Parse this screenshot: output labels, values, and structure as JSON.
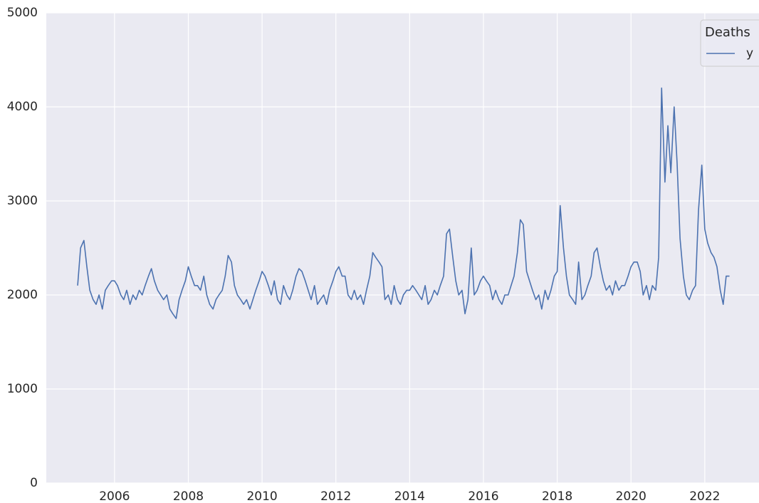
{
  "chart_data": {
    "type": "line",
    "legend_title": "Deaths",
    "legend_loc": "upper right",
    "grid": true,
    "xlim": [
      2004.15,
      2023.47
    ],
    "xticks": [
      2006,
      2008,
      2010,
      2012,
      2014,
      2016,
      2018,
      2020,
      2022
    ],
    "ylim": [
      0,
      5000
    ],
    "yticks": [
      0,
      1000,
      2000,
      3000,
      4000,
      5000
    ],
    "x": [
      2005.0,
      2005.08,
      2005.17,
      2005.25,
      2005.33,
      2005.42,
      2005.5,
      2005.58,
      2005.67,
      2005.75,
      2005.83,
      2005.92,
      2006.0,
      2006.08,
      2006.17,
      2006.25,
      2006.33,
      2006.42,
      2006.5,
      2006.58,
      2006.67,
      2006.75,
      2006.83,
      2006.92,
      2007.0,
      2007.08,
      2007.17,
      2007.25,
      2007.33,
      2007.42,
      2007.5,
      2007.58,
      2007.67,
      2007.75,
      2007.83,
      2007.92,
      2008.0,
      2008.08,
      2008.17,
      2008.25,
      2008.33,
      2008.42,
      2008.5,
      2008.58,
      2008.67,
      2008.75,
      2008.83,
      2008.92,
      2009.0,
      2009.08,
      2009.17,
      2009.25,
      2009.33,
      2009.42,
      2009.5,
      2009.58,
      2009.67,
      2009.75,
      2009.83,
      2009.92,
      2010.0,
      2010.08,
      2010.17,
      2010.25,
      2010.33,
      2010.42,
      2010.5,
      2010.58,
      2010.67,
      2010.75,
      2010.83,
      2010.92,
      2011.0,
      2011.08,
      2011.17,
      2011.25,
      2011.33,
      2011.42,
      2011.5,
      2011.58,
      2011.67,
      2011.75,
      2011.83,
      2011.92,
      2012.0,
      2012.08,
      2012.17,
      2012.25,
      2012.33,
      2012.42,
      2012.5,
      2012.58,
      2012.67,
      2012.75,
      2012.83,
      2012.92,
      2013.0,
      2013.08,
      2013.17,
      2013.25,
      2013.33,
      2013.42,
      2013.5,
      2013.58,
      2013.67,
      2013.75,
      2013.83,
      2013.92,
      2014.0,
      2014.08,
      2014.17,
      2014.25,
      2014.33,
      2014.42,
      2014.5,
      2014.58,
      2014.67,
      2014.75,
      2014.83,
      2014.92,
      2015.0,
      2015.08,
      2015.17,
      2015.25,
      2015.33,
      2015.42,
      2015.5,
      2015.58,
      2015.67,
      2015.75,
      2015.83,
      2015.92,
      2016.0,
      2016.08,
      2016.17,
      2016.25,
      2016.33,
      2016.42,
      2016.5,
      2016.58,
      2016.67,
      2016.75,
      2016.83,
      2016.92,
      2017.0,
      2017.08,
      2017.17,
      2017.25,
      2017.33,
      2017.42,
      2017.5,
      2017.58,
      2017.67,
      2017.75,
      2017.83,
      2017.92,
      2018.0,
      2018.08,
      2018.17,
      2018.25,
      2018.33,
      2018.42,
      2018.5,
      2018.58,
      2018.67,
      2018.75,
      2018.83,
      2018.92,
      2019.0,
      2019.08,
      2019.17,
      2019.25,
      2019.33,
      2019.42,
      2019.5,
      2019.58,
      2019.67,
      2019.75,
      2019.83,
      2019.92,
      2020.0,
      2020.08,
      2020.17,
      2020.25,
      2020.33,
      2020.42,
      2020.5,
      2020.58,
      2020.67,
      2020.75,
      2020.83,
      2020.92,
      2021.0,
      2021.08,
      2021.17,
      2021.25,
      2021.33,
      2021.42,
      2021.5,
      2021.58,
      2021.67,
      2021.75,
      2021.83,
      2021.92,
      2022.0,
      2022.08,
      2022.17,
      2022.25,
      2022.33,
      2022.42,
      2022.5,
      2022.58,
      2022.67
    ],
    "series": [
      {
        "name": "y",
        "color": "#4c72b0",
        "values": [
          2100,
          2500,
          2580,
          2300,
          2050,
          1950,
          1900,
          2000,
          1850,
          2050,
          2100,
          2150,
          2150,
          2100,
          2000,
          1950,
          2050,
          1900,
          2000,
          1950,
          2050,
          2000,
          2100,
          2200,
          2280,
          2150,
          2050,
          2000,
          1950,
          2000,
          1850,
          1800,
          1750,
          1950,
          2050,
          2150,
          2300,
          2200,
          2100,
          2100,
          2050,
          2200,
          2000,
          1900,
          1850,
          1950,
          2000,
          2050,
          2200,
          2420,
          2350,
          2100,
          2000,
          1950,
          1900,
          1950,
          1850,
          1950,
          2050,
          2150,
          2250,
          2200,
          2100,
          2000,
          2150,
          1950,
          1900,
          2100,
          2000,
          1950,
          2050,
          2200,
          2280,
          2250,
          2150,
          2050,
          1950,
          2100,
          1900,
          1950,
          2000,
          1900,
          2050,
          2150,
          2250,
          2300,
          2200,
          2200,
          2000,
          1950,
          2050,
          1950,
          2000,
          1900,
          2050,
          2200,
          2450,
          2400,
          2350,
          2300,
          1950,
          2000,
          1900,
          2100,
          1950,
          1900,
          2000,
          2050,
          2050,
          2100,
          2050,
          2000,
          1950,
          2100,
          1900,
          1950,
          2050,
          2000,
          2100,
          2200,
          2650,
          2700,
          2400,
          2150,
          2000,
          2050,
          1800,
          1950,
          2500,
          2000,
          2050,
          2150,
          2200,
          2150,
          2100,
          1950,
          2050,
          1950,
          1900,
          2000,
          2000,
          2100,
          2200,
          2450,
          2800,
          2750,
          2250,
          2150,
          2050,
          1950,
          2000,
          1850,
          2050,
          1950,
          2050,
          2200,
          2250,
          2950,
          2500,
          2200,
          2000,
          1950,
          1900,
          2350,
          1950,
          2000,
          2100,
          2200,
          2450,
          2500,
          2300,
          2150,
          2050,
          2100,
          2000,
          2150,
          2050,
          2100,
          2100,
          2200,
          2300,
          2350,
          2350,
          2250,
          2000,
          2100,
          1950,
          2100,
          2050,
          2400,
          4200,
          3200,
          3800,
          3300,
          4000,
          3400,
          2600,
          2200,
          2000,
          1950,
          2050,
          2100,
          2900,
          3380,
          2700,
          2550,
          2450,
          2400,
          2300,
          2050,
          1900,
          2200,
          2200
        ]
      }
    ]
  }
}
